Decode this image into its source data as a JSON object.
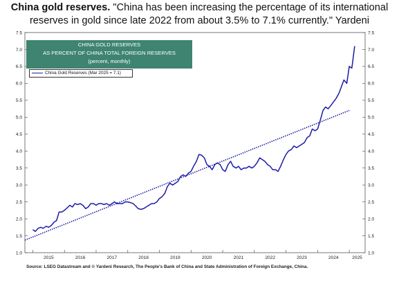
{
  "headline": {
    "bold": "China gold reserves.",
    "rest": " \"China has been increasing the percentage of its international reserves in gold since late 2022 from about 3.5% to 7.1% currently.\" Yardeni"
  },
  "chart_data": {
    "type": "line",
    "title_lines": [
      "CHINA GOLD RESERVES",
      "AS PERCENT OF CHINA TOTAL FOREIGN RESERVES",
      "(percent, monthly)"
    ],
    "legend": "China Gold Reserves (Mar 2025 = 7.1)",
    "source": "Source: LSEG Datastream and © Yardeni Research, The People's Bank of China and State Administration of Foreign Exchange, China.",
    "xlabel": "",
    "ylabel": "",
    "ylim": [
      1.0,
      7.5
    ],
    "xlim": [
      2014.75,
      2025.5
    ],
    "y_ticks": [
      "1.0",
      "1.5",
      "2.0",
      "2.5",
      "3.0",
      "3.5",
      "4.0",
      "4.5",
      "5.0",
      "5.5",
      "6.0",
      "6.5",
      "7.0",
      "7.5"
    ],
    "x_ticks": [
      "2015",
      "2016",
      "2017",
      "2018",
      "2019",
      "2020",
      "2021",
      "2022",
      "2023",
      "2024",
      "2025"
    ],
    "grid": false,
    "legend_position": "top-left",
    "colors": {
      "line": "#1a1aa8",
      "trend": "#1a1aa8",
      "title_box": "#3e8470"
    },
    "series": [
      {
        "name": "China Gold Reserves",
        "x": [
          2015.0,
          2015.08,
          2015.17,
          2015.25,
          2015.33,
          2015.42,
          2015.5,
          2015.58,
          2015.67,
          2015.75,
          2015.83,
          2015.92,
          2016.0,
          2016.08,
          2016.17,
          2016.25,
          2016.33,
          2016.42,
          2016.5,
          2016.58,
          2016.67,
          2016.75,
          2016.83,
          2016.92,
          2017.0,
          2017.08,
          2017.17,
          2017.25,
          2017.33,
          2017.42,
          2017.5,
          2017.58,
          2017.67,
          2017.75,
          2017.83,
          2017.92,
          2018.0,
          2018.08,
          2018.17,
          2018.25,
          2018.33,
          2018.42,
          2018.5,
          2018.58,
          2018.67,
          2018.75,
          2018.83,
          2018.92,
          2019.0,
          2019.08,
          2019.17,
          2019.25,
          2019.33,
          2019.42,
          2019.5,
          2019.58,
          2019.67,
          2019.75,
          2019.83,
          2019.92,
          2020.0,
          2020.08,
          2020.17,
          2020.25,
          2020.33,
          2020.42,
          2020.5,
          2020.58,
          2020.67,
          2020.75,
          2020.83,
          2020.92,
          2021.0,
          2021.08,
          2021.17,
          2021.25,
          2021.33,
          2021.42,
          2021.5,
          2021.58,
          2021.67,
          2021.75,
          2021.83,
          2021.92,
          2022.0,
          2022.08,
          2022.17,
          2022.25,
          2022.33,
          2022.42,
          2022.5,
          2022.58,
          2022.67,
          2022.75,
          2022.83,
          2022.92,
          2023.0,
          2023.08,
          2023.17,
          2023.25,
          2023.33,
          2023.42,
          2023.5,
          2023.58,
          2023.67,
          2023.75,
          2023.83,
          2023.92,
          2024.0,
          2024.08,
          2024.17,
          2024.25,
          2024.33,
          2024.42,
          2024.5,
          2024.58,
          2024.67,
          2024.75,
          2024.83,
          2024.92,
          2025.0,
          2025.08,
          2025.17
        ],
        "values": [
          1.68,
          1.63,
          1.72,
          1.75,
          1.72,
          1.78,
          1.75,
          1.8,
          1.9,
          1.95,
          2.2,
          2.2,
          2.25,
          2.32,
          2.4,
          2.35,
          2.45,
          2.42,
          2.45,
          2.4,
          2.3,
          2.35,
          2.45,
          2.45,
          2.4,
          2.45,
          2.45,
          2.42,
          2.45,
          2.4,
          2.45,
          2.5,
          2.45,
          2.45,
          2.45,
          2.5,
          2.5,
          2.48,
          2.45,
          2.38,
          2.3,
          2.28,
          2.3,
          2.35,
          2.4,
          2.45,
          2.45,
          2.5,
          2.6,
          2.65,
          2.75,
          2.95,
          3.05,
          3.0,
          3.05,
          3.1,
          3.25,
          3.3,
          3.25,
          3.35,
          3.4,
          3.55,
          3.7,
          3.9,
          3.88,
          3.8,
          3.6,
          3.55,
          3.45,
          3.6,
          3.65,
          3.6,
          3.45,
          3.4,
          3.6,
          3.7,
          3.55,
          3.5,
          3.55,
          3.45,
          3.5,
          3.5,
          3.55,
          3.5,
          3.55,
          3.65,
          3.8,
          3.75,
          3.7,
          3.6,
          3.55,
          3.45,
          3.45,
          3.4,
          3.55,
          3.75,
          3.9,
          4.0,
          4.05,
          4.15,
          4.1,
          4.15,
          4.2,
          4.25,
          4.4,
          4.45,
          4.65,
          4.6,
          4.65,
          4.9,
          5.2,
          5.3,
          5.25,
          5.35,
          5.45,
          5.55,
          5.7,
          5.9,
          6.1,
          6.0,
          6.5,
          6.45,
          7.1
        ]
      },
      {
        "name": "trend",
        "x": [
          2014.75,
          2025.0
        ],
        "values": [
          1.37,
          5.2
        ]
      }
    ]
  }
}
